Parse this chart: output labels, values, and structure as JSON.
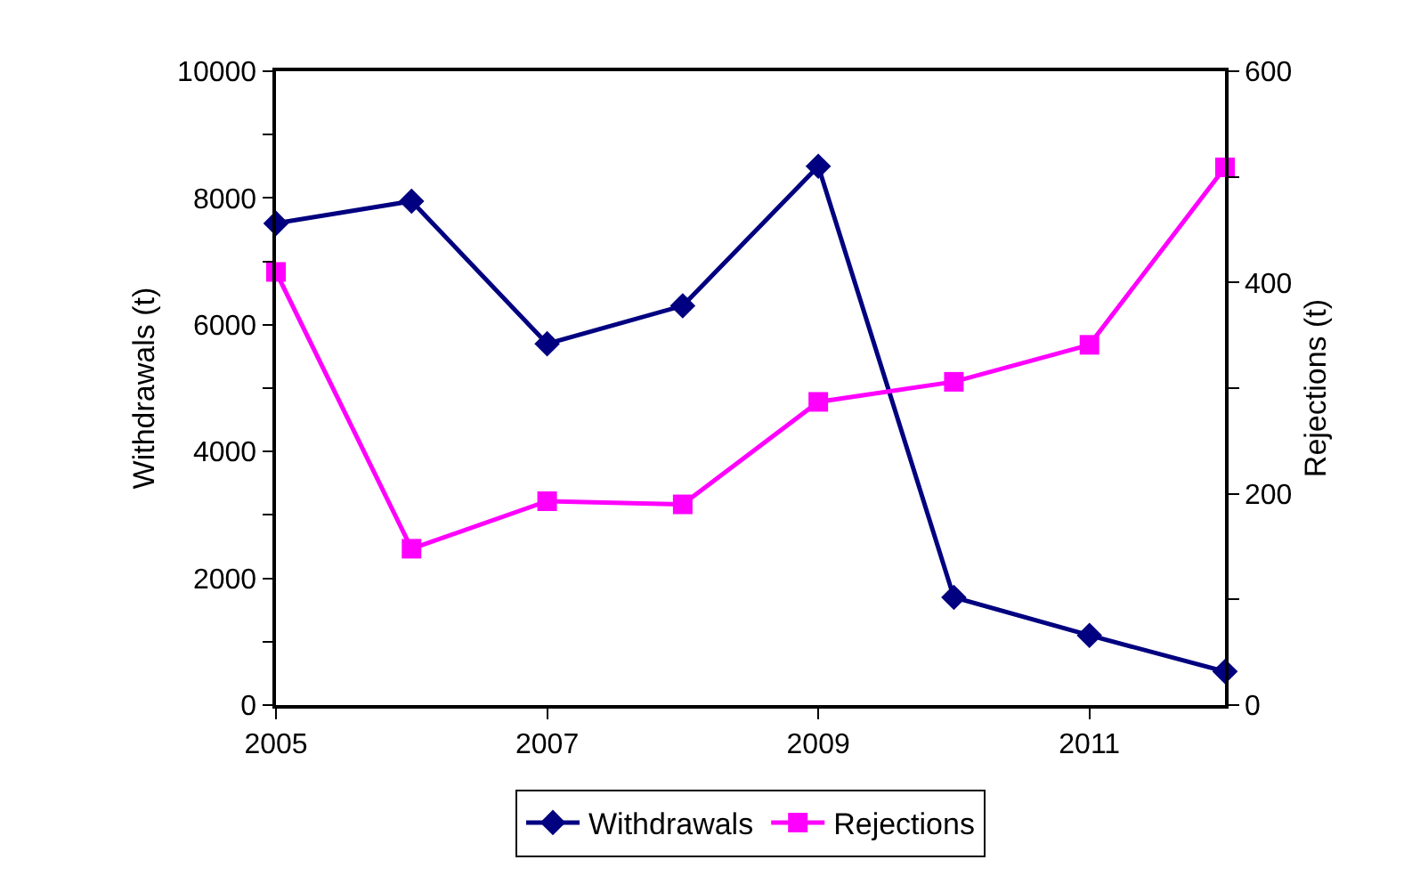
{
  "chart_data": {
    "type": "line",
    "xlabel": null,
    "ylabel": "Withdrawals (t)",
    "y2label": "Rejections (t)",
    "x": [
      2005,
      2006,
      2007,
      2008,
      2009,
      2010,
      2011,
      2012
    ],
    "series": [
      {
        "name": "Withdrawals",
        "color": "#000080",
        "marker": "diamond",
        "values": [
          7600,
          7950,
          5700,
          6300,
          8500,
          1700,
          1100,
          530
        ]
      },
      {
        "name": "Rejections",
        "color": "#ff00ff",
        "marker": "square",
        "axis": "y2",
        "values": [
          410,
          148,
          193,
          190,
          287,
          306,
          341,
          509
        ]
      }
    ],
    "xlim": [
      2005,
      2012
    ],
    "xticks": [
      2005,
      2007,
      2009,
      2011
    ],
    "ylim": [
      0,
      10000
    ],
    "yticks": [
      0,
      {
        "value": 1000,
        "label": null
      },
      2000,
      {
        "value": 3000,
        "label": null
      },
      4000,
      {
        "value": 5000,
        "label": null
      },
      6000,
      {
        "value": 7000,
        "label": null
      },
      8000,
      {
        "value": 9000,
        "label": null
      },
      10000
    ],
    "y2lim": [
      0,
      600
    ],
    "y2ticks": [
      0,
      {
        "value": 100,
        "label": null
      },
      200,
      {
        "value": 300,
        "label": null
      },
      400,
      {
        "value": 500,
        "label": null
      },
      600
    ],
    "legend": "bottom",
    "line_style": "solid"
  }
}
